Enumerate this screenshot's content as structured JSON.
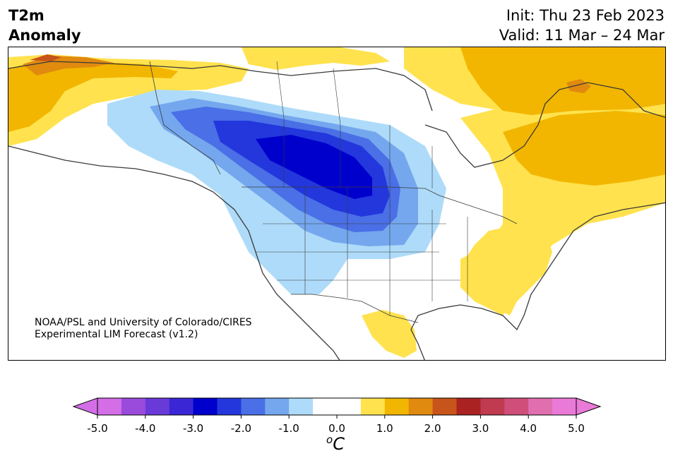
{
  "header": {
    "variable_line1": "T2m",
    "variable_line2": "Anomaly",
    "init": "Init: Thu 23 Feb 2023",
    "valid": "Valid: 11 Mar – 24 Mar"
  },
  "credit": {
    "line1": "NOAA/PSL and University of Colorado/CIRES",
    "line2": "Experimental LIM Forecast (v1.2)"
  },
  "colorbar": {
    "unit_base": "C",
    "unit_sup": "o",
    "ticks": [
      "-5.0",
      "-4.0",
      "-3.0",
      "-2.0",
      "-1.0",
      "0.0",
      "1.0",
      "2.0",
      "3.0",
      "4.0",
      "5.0"
    ],
    "colors": [
      "#d36ee6",
      "#9b4bdc",
      "#6a3ad9",
      "#3a26d4",
      "#0000cd",
      "#2337dc",
      "#4a6fe6",
      "#74a7ee",
      "#aedbf9",
      "#ffffff",
      "#ffffff",
      "#ffe24d",
      "#f2b600",
      "#e08a10",
      "#c7541a",
      "#aa2222",
      "#c03a50",
      "#d04e7a",
      "#e06fb0",
      "#ea7ad8"
    ],
    "under_color": "#d36ee6",
    "over_color": "#ea7ad8"
  },
  "map": {
    "land_color": "#ffffff",
    "water_color": "#ffffff",
    "coast_color": "#3a3a3a"
  }
}
